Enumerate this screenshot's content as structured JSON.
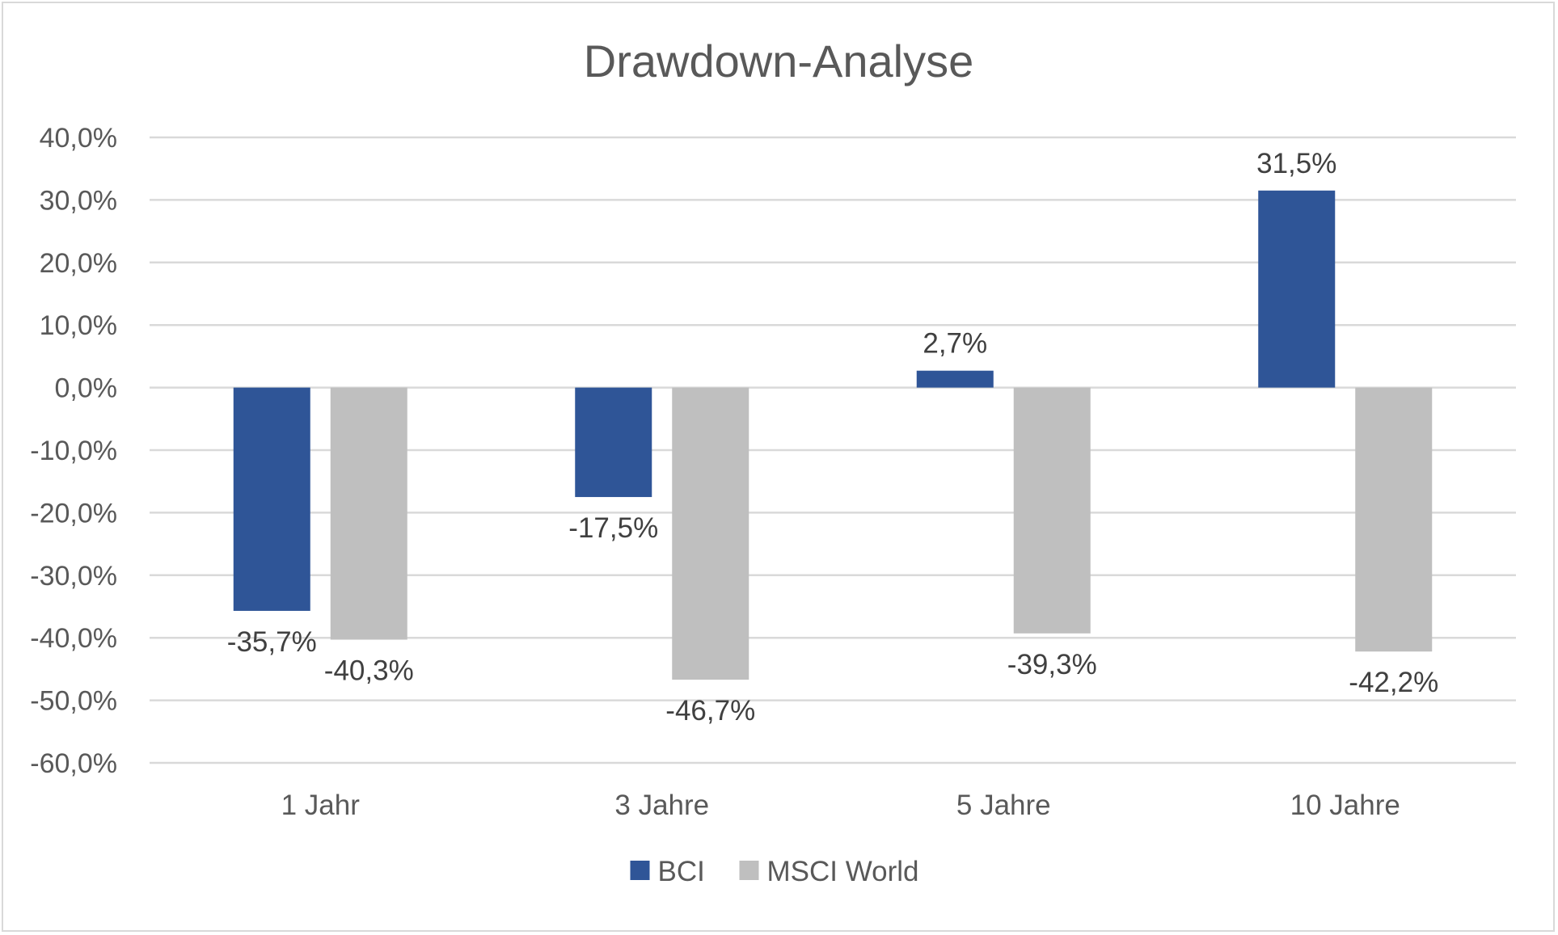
{
  "chart_data": {
    "type": "bar",
    "title": "Drawdown-Analyse",
    "xlabel": "",
    "ylabel": "",
    "categories": [
      "1 Jahr",
      "3 Jahre",
      "5 Jahre",
      "10 Jahre"
    ],
    "series": [
      {
        "name": "BCI",
        "color": "#2f5597",
        "values": [
          -35.7,
          -17.5,
          2.7,
          31.5
        ],
        "labels": [
          "-35,7%",
          "-17,5%",
          "2,7%",
          "31,5%"
        ]
      },
      {
        "name": "MSCI World",
        "color": "#bfbfbf",
        "values": [
          -40.3,
          -46.7,
          -39.3,
          -42.2
        ],
        "labels": [
          "-40,3%",
          "-46,7%",
          "-39,3%",
          "-42,2%"
        ]
      }
    ],
    "ylim": [
      -60,
      40
    ],
    "yticks": [
      40,
      30,
      20,
      10,
      0,
      -10,
      -20,
      -30,
      -40,
      -50,
      -60
    ],
    "ytick_labels": [
      "40,0%",
      "30,0%",
      "20,0%",
      "10,0%",
      "0,0%",
      "-10,0%",
      "-20,0%",
      "-30,0%",
      "-40,0%",
      "-50,0%",
      "-60,0%"
    ],
    "grid": true,
    "legend_position": "bottom"
  }
}
